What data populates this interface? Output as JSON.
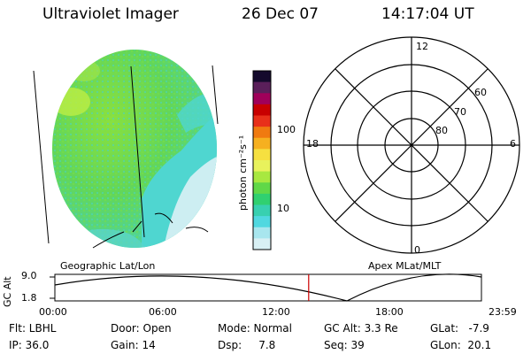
{
  "header": {
    "title": "Ultraviolet Imager",
    "date": "26 Dec 07",
    "time": "14:17:04 UT"
  },
  "colorbar": {
    "unit_label": "photon cm⁻²s⁻¹",
    "tick_labels": [
      "100",
      "10"
    ],
    "colors": [
      "#140a2c",
      "#5a1f5a",
      "#a0005a",
      "#c80000",
      "#e8301a",
      "#f07a10",
      "#f6b020",
      "#f6e040",
      "#e8f25c",
      "#a8e840",
      "#60d848",
      "#30d070",
      "#38d0b0",
      "#50d8e0",
      "#a8e6ee",
      "#d8f0f4"
    ]
  },
  "polar_plot": {
    "labels": {
      "top": "12",
      "right": "6",
      "bottom": "0",
      "left": "18"
    },
    "latitude_labels": [
      "60",
      "70",
      "80"
    ]
  },
  "timeline": {
    "left_label": "Geographic Lat/Lon",
    "right_label": "Apex MLat/MLT",
    "ylabel": "GC Alt",
    "y_ticks": [
      "9.0",
      "1.8"
    ],
    "x_ticks": [
      "00:00",
      "06:00",
      "12:00",
      "18:00",
      "23:59"
    ],
    "current_time_hours": 14.28
  },
  "info": {
    "flt": "Flt: LBHL",
    "ip": "IP: 36.0",
    "door": "Door: Open",
    "gain": "Gain: 14",
    "mode": "Mode: Normal",
    "dsp": "Dsp:     7.8",
    "gcalt": "GC Alt: 3.3 Re",
    "seq": "Seq: 39",
    "glat": "GLat:   -7.9",
    "glon": "GLon:  20.1"
  },
  "colors": {
    "marker": "#cc0000",
    "disk_base": "#6ad85a",
    "disk_cyan": "#4fd6d0",
    "disk_light": "#cdeef2"
  }
}
